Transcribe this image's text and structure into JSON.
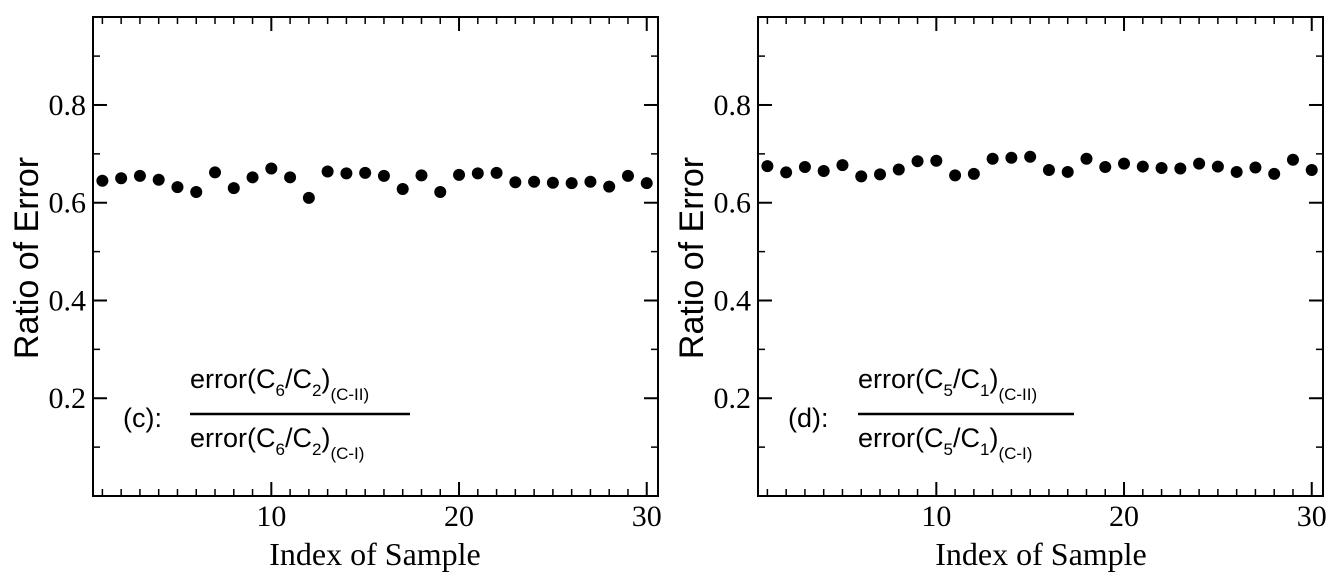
{
  "chart_data": [
    {
      "type": "scatter",
      "panel": "c",
      "xlabel": "Index of Sample",
      "ylabel": "Ratio of Error",
      "xlim": [
        0.5,
        30.6
      ],
      "ylim": [
        0.0,
        0.98
      ],
      "xticks": [
        10,
        20,
        30
      ],
      "xtick_labels": [
        "10",
        "20",
        "30"
      ],
      "yticks": [
        0.2,
        0.4,
        0.6,
        0.8
      ],
      "ytick_labels": [
        "0.2",
        "0.4",
        "0.6",
        "0.8"
      ],
      "series": [
        {
          "name": "ratio",
          "x": [
            1,
            2,
            3,
            4,
            5,
            6,
            7,
            8,
            9,
            10,
            11,
            12,
            13,
            14,
            15,
            16,
            17,
            18,
            19,
            20,
            21,
            22,
            23,
            24,
            25,
            26,
            27,
            28,
            29,
            30
          ],
          "y": [
            0.645,
            0.65,
            0.655,
            0.647,
            0.632,
            0.622,
            0.662,
            0.63,
            0.652,
            0.67,
            0.652,
            0.61,
            0.664,
            0.66,
            0.661,
            0.655,
            0.628,
            0.656,
            0.622,
            0.657,
            0.66,
            0.661,
            0.642,
            0.643,
            0.641,
            0.64,
            0.643,
            0.633,
            0.655,
            0.64
          ]
        }
      ],
      "annotation": {
        "label": "(c):",
        "num_main": "error(C",
        "num_s1": "6",
        "num_mid": "/C",
        "num_s2": "2",
        "num_close": ")",
        "num_sub": "(C-II)",
        "den_main": "error(C",
        "den_s1": "6",
        "den_mid": "/C",
        "den_s2": "2",
        "den_close": ")",
        "den_sub": "(C-I)"
      }
    },
    {
      "type": "scatter",
      "panel": "d",
      "xlabel": "Index of Sample",
      "ylabel": "Ratio of Error",
      "xlim": [
        0.5,
        30.6
      ],
      "ylim": [
        0.0,
        0.98
      ],
      "xticks": [
        10,
        20,
        30
      ],
      "xtick_labels": [
        "10",
        "20",
        "30"
      ],
      "yticks": [
        0.2,
        0.4,
        0.6,
        0.8
      ],
      "ytick_labels": [
        "0.2",
        "0.4",
        "0.6",
        "0.8"
      ],
      "series": [
        {
          "name": "ratio",
          "x": [
            1,
            2,
            3,
            4,
            5,
            6,
            7,
            8,
            9,
            10,
            11,
            12,
            13,
            14,
            15,
            16,
            17,
            18,
            19,
            20,
            21,
            22,
            23,
            24,
            25,
            26,
            27,
            28,
            29,
            30
          ],
          "y": [
            0.675,
            0.662,
            0.673,
            0.665,
            0.677,
            0.654,
            0.658,
            0.668,
            0.685,
            0.686,
            0.656,
            0.659,
            0.69,
            0.692,
            0.694,
            0.667,
            0.663,
            0.69,
            0.673,
            0.68,
            0.674,
            0.671,
            0.67,
            0.68,
            0.674,
            0.663,
            0.672,
            0.659,
            0.688,
            0.667
          ]
        }
      ],
      "annotation": {
        "label": "(d):",
        "num_main": "error(C",
        "num_s1": "5",
        "num_mid": "/C",
        "num_s2": "1",
        "num_close": ")",
        "num_sub": "(C-II)",
        "den_main": "error(C",
        "den_s1": "5",
        "den_mid": "/C",
        "den_s2": "1",
        "den_close": ")",
        "den_sub": "(C-I)"
      }
    }
  ]
}
